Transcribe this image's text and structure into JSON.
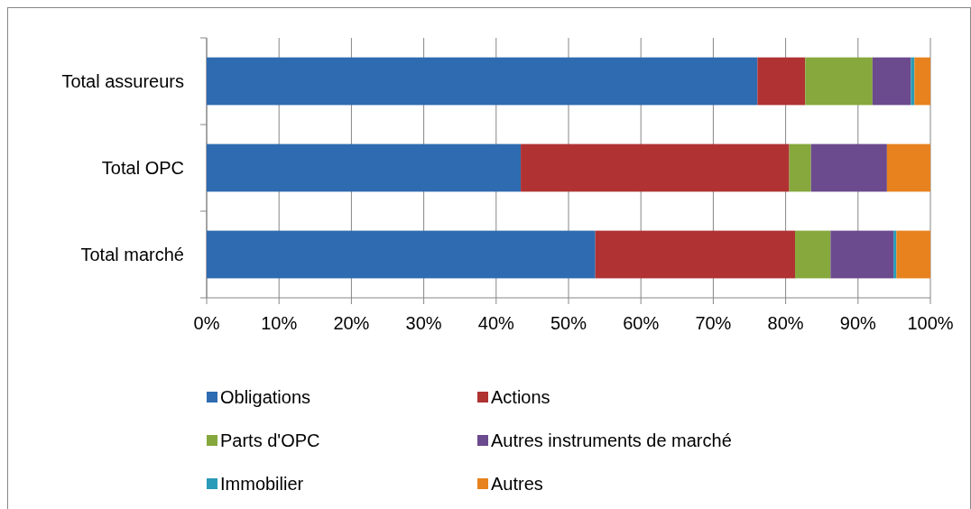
{
  "chart_data": {
    "type": "bar",
    "orientation": "horizontal",
    "stacked": true,
    "categories": [
      "Total assureurs",
      "Total OPC",
      "Total marché"
    ],
    "series": [
      {
        "name": "Obligations",
        "color": "#2e6bb0",
        "values": [
          76.1,
          43.4,
          53.7
        ]
      },
      {
        "name": "Actions",
        "color": "#b03232",
        "values": [
          6.6,
          37.1,
          27.6
        ]
      },
      {
        "name": "Parts d'OPC",
        "color": "#86a83c",
        "values": [
          9.3,
          3.0,
          4.9
        ]
      },
      {
        "name": "Autres instruments de marché",
        "color": "#6b4a8e",
        "values": [
          5.3,
          10.5,
          8.7
        ]
      },
      {
        "name": "Immobilier",
        "color": "#2a9bb8",
        "values": [
          0.5,
          0,
          0.4
        ]
      },
      {
        "name": "Autres",
        "color": "#e8821e",
        "values": [
          2.2,
          6.0,
          4.7
        ]
      }
    ],
    "xlim": [
      0,
      100
    ],
    "xticks": [
      {
        "value": 0,
        "label": "0%"
      },
      {
        "value": 10,
        "label": "10%"
      },
      {
        "value": 20,
        "label": "20%"
      },
      {
        "value": 30,
        "label": "30%"
      },
      {
        "value": 40,
        "label": "40%"
      },
      {
        "value": 50,
        "label": "50%"
      },
      {
        "value": 60,
        "label": "60%"
      },
      {
        "value": 70,
        "label": "70%"
      },
      {
        "value": 80,
        "label": "80%"
      },
      {
        "value": 90,
        "label": "90%"
      },
      {
        "value": 100,
        "label": "100%"
      }
    ],
    "grid": "x",
    "legend": "bottom"
  }
}
